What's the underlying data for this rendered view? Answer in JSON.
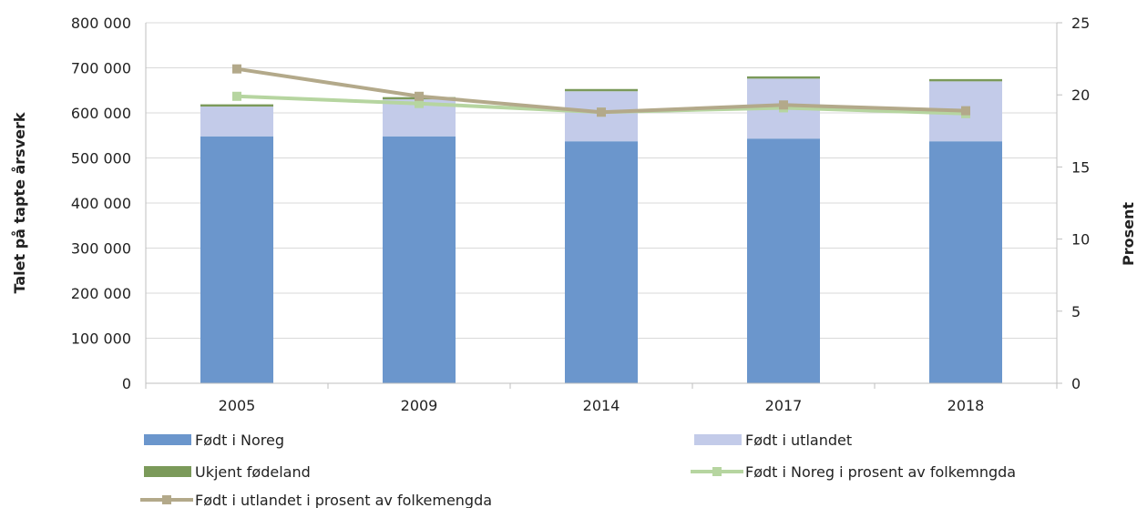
{
  "chart_data": {
    "type": "bar",
    "stacked": true,
    "title": "",
    "categories": [
      "2005",
      "2009",
      "2014",
      "2017",
      "2018"
    ],
    "ylabel": "Talet på tapte årsverk",
    "y2label": "Prosent",
    "ylim": [
      0,
      800000
    ],
    "y2lim": [
      0,
      25
    ],
    "yticks": [
      "0",
      "100 000",
      "200 000",
      "300 000",
      "400 000",
      "500 000",
      "600 000",
      "700 000",
      "800 000"
    ],
    "y2ticks": [
      "0",
      "5",
      "10",
      "15",
      "20",
      "25"
    ],
    "grid": true,
    "legend_position": "bottom",
    "series": [
      {
        "name": "Født i Noreg",
        "kind": "bar",
        "axis": "left",
        "color": "#6b96cc",
        "values": [
          548000,
          548000,
          537000,
          543000,
          537000
        ]
      },
      {
        "name": "Født i utlandet",
        "kind": "bar",
        "axis": "left",
        "color": "#c3cbe9",
        "values": [
          66000,
          82000,
          111000,
          133000,
          133000
        ]
      },
      {
        "name": "Ukjent fødeland",
        "kind": "bar",
        "axis": "left",
        "color": "#7b9a5a",
        "values": [
          5000,
          5000,
          5000,
          5000,
          5000
        ]
      },
      {
        "name": "Født i Noreg i prosent av folkemngda",
        "kind": "line",
        "axis": "right",
        "color": "#b6d5a0",
        "values": [
          19.9,
          19.4,
          18.8,
          19.1,
          18.7
        ]
      },
      {
        "name": "Født i utlandet i prosent av folkemengda",
        "kind": "line",
        "axis": "right",
        "color": "#b3a98a",
        "values": [
          21.8,
          19.9,
          18.8,
          19.3,
          18.9
        ]
      }
    ]
  }
}
